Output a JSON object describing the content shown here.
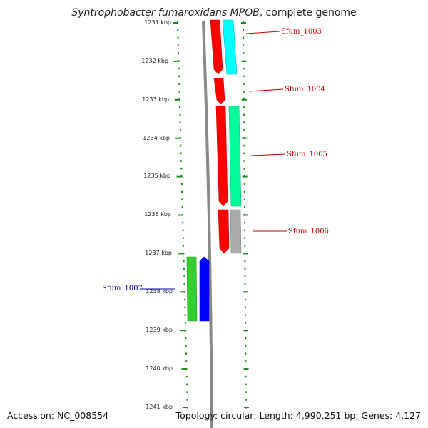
{
  "title": {
    "organism": "Syntrophobacter fumaroxidans MPOB",
    "suffix": ", complete genome"
  },
  "footer": {
    "accession": "Accession: NC_008554",
    "topology": "Topology: circular; Length: 4,990,251 bp; Genes: 4,127"
  },
  "axis": {
    "tick_labels": [
      "1231 kbp",
      "1232 kbp",
      "1233 kbp",
      "1234 kbp",
      "1235 kbp",
      "1236 kbp",
      "1237 kbp",
      "1238 kbp",
      "1239 kbp",
      "1240 kbp",
      "1241 kbp"
    ],
    "color": "#1a8c1a"
  },
  "genes": [
    {
      "label": "Sfum_1003",
      "color": "#ff0000",
      "strand": "+",
      "start_kbp": 1230.7,
      "end_kbp": 1232.4
    },
    {
      "label": "Sfum_1003",
      "color": "#00ffff",
      "strand": "+",
      "start_kbp": 1230.7,
      "end_kbp": 1232.3
    },
    {
      "label": "Sfum_1004",
      "color": "#ff0000",
      "strand": "+",
      "start_kbp": 1232.5,
      "end_kbp": 1233.2
    },
    {
      "label": "Sfum_1005",
      "color": "#ff0000",
      "strand": "+",
      "start_kbp": 1233.2,
      "end_kbp": 1235.9
    },
    {
      "label": "Sfum_1005",
      "color": "#00ff99",
      "strand": "+",
      "start_kbp": 1233.2,
      "end_kbp": 1235.9
    },
    {
      "label": "Sfum_1006",
      "color": "#ff0000",
      "strand": "+",
      "start_kbp": 1236.0,
      "end_kbp": 1237.0
    },
    {
      "label": "Sfum_1006",
      "color": "#aaaaaa",
      "strand": "+",
      "start_kbp": 1236.0,
      "end_kbp": 1237.0
    },
    {
      "label": "Sfum_1007",
      "color": "#33cc33",
      "strand": "-",
      "start_kbp": 1237.1,
      "end_kbp": 1238.8
    },
    {
      "label": "Sfum_1007",
      "color": "#0000ff",
      "strand": "-",
      "start_kbp": 1237.1,
      "end_kbp": 1238.8
    }
  ],
  "labels": [
    {
      "text": "Sfum_1003",
      "color": "#cc0000"
    },
    {
      "text": "Sfum_1004",
      "color": "#cc0000"
    },
    {
      "text": "Sfum_1005",
      "color": "#cc0000"
    },
    {
      "text": "Sfum_1006",
      "color": "#cc0000"
    },
    {
      "text": "Sfum_1007",
      "color": "#0000aa"
    }
  ]
}
